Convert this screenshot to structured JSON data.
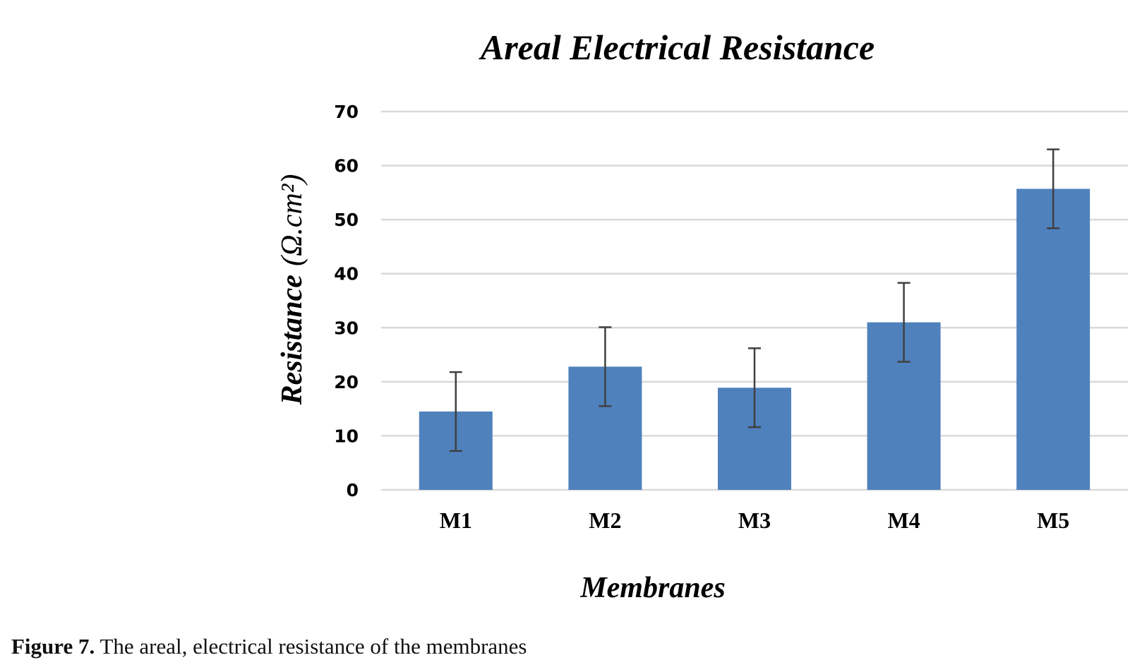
{
  "chart_data": {
    "type": "bar",
    "title": "Areal Electrical Resistance",
    "xlabel": "Membranes",
    "ylabel_main": "Resistance",
    "ylabel_unit": "(Ω.cm²)",
    "categories": [
      "M1",
      "M2",
      "M3",
      "M4",
      "M5"
    ],
    "values": [
      14.5,
      22.8,
      18.9,
      31,
      55.7
    ],
    "error_bars": [
      7.3,
      7.3,
      7.3,
      7.3,
      7.3
    ],
    "ylim": [
      0,
      70
    ],
    "yticks": [
      0,
      10,
      20,
      30,
      40,
      50,
      60,
      70
    ],
    "grid": true,
    "bar_color": "#4f81bd",
    "gridline_color": "#d9d9d9",
    "errorbar_color": "#404040"
  },
  "caption": {
    "label": "Figure 7.",
    "text": "The areal, electrical resistance of the membranes"
  }
}
